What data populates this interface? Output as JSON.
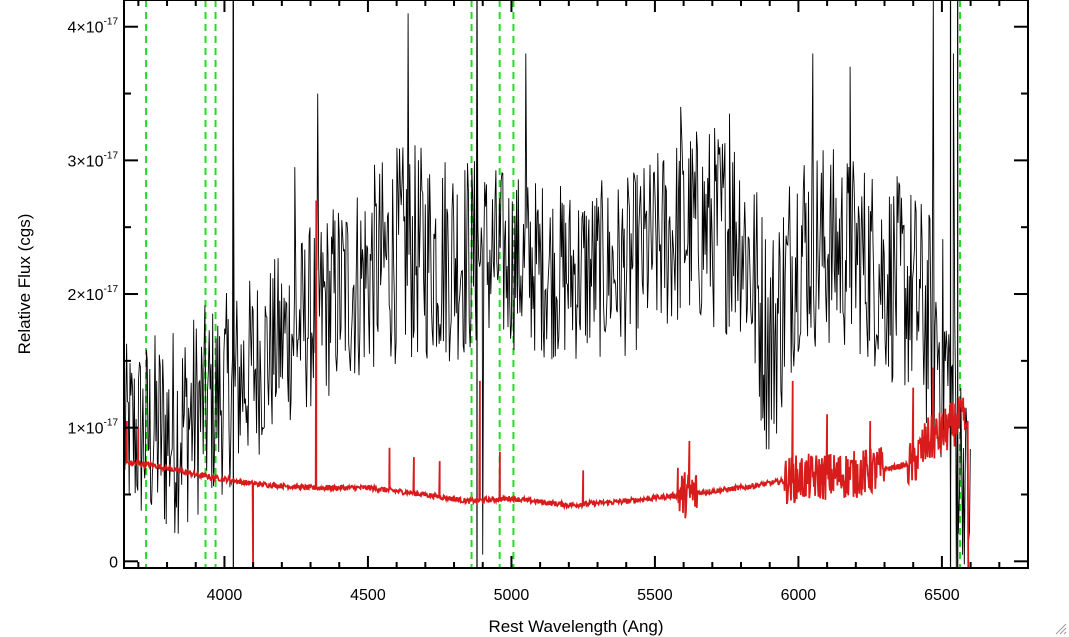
{
  "chart_data": {
    "type": "line",
    "title": "",
    "xlabel": "Rest Wavelength (Ang)",
    "ylabel": "Relative Flux (cgs)",
    "xlim": [
      3650,
      6800
    ],
    "ylim": [
      -5e-19,
      4.2e-17
    ],
    "x_ticks": [
      {
        "value": 4000,
        "label": "4000"
      },
      {
        "value": 4500,
        "label": "4500"
      },
      {
        "value": 5000,
        "label": "5000"
      },
      {
        "value": 5500,
        "label": "5500"
      },
      {
        "value": 6000,
        "label": "6000"
      },
      {
        "value": 6500,
        "label": "6500"
      }
    ],
    "y_ticks": [
      {
        "value": 0,
        "mantissa": "0",
        "exponent": ""
      },
      {
        "value": 1e-17,
        "mantissa": "1×10",
        "exponent": "-17"
      },
      {
        "value": 2e-17,
        "mantissa": "2×10",
        "exponent": "-17"
      },
      {
        "value": 3e-17,
        "mantissa": "3×10",
        "exponent": "-17"
      },
      {
        "value": 4e-17,
        "mantissa": "4×10",
        "exponent": "-17"
      }
    ],
    "series": [
      {
        "color": "#000000",
        "style": "noisy-line",
        "envelope": {
          "x": [
            3650,
            3800,
            4000,
            4200,
            4400,
            4600,
            4800,
            5000,
            5200,
            5400,
            5600,
            5800,
            5900,
            6000,
            6200,
            6400,
            6500,
            6550,
            6600
          ],
          "mean": [
            0.95,
            0.95,
            1.25,
            1.65,
            2.0,
            2.3,
            2.3,
            2.25,
            2.15,
            2.2,
            2.5,
            2.5,
            1.6,
            2.4,
            2.3,
            2.0,
            1.6,
            1.0,
            0.4
          ],
          "amplitude": [
            0.45,
            0.55,
            0.5,
            0.45,
            0.5,
            0.55,
            0.55,
            0.45,
            0.45,
            0.45,
            0.5,
            0.55,
            0.6,
            0.55,
            0.5,
            0.55,
            0.6,
            0.55,
            0.4
          ]
        },
        "spikes": [
          [
            4030,
            4.2
          ],
          [
            4245,
            2.95
          ],
          [
            4325,
            3.5
          ],
          [
            4640,
            4.1
          ],
          [
            4880,
            4.25
          ],
          [
            4900,
            0.05
          ],
          [
            5050,
            3.8
          ],
          [
            5590,
            3.4
          ],
          [
            5760,
            3.35
          ],
          [
            6050,
            3.8
          ],
          [
            6180,
            3.7
          ],
          [
            6470,
            4.25
          ],
          [
            6540,
            3.8
          ],
          [
            6550,
            -0.05
          ]
        ]
      },
      {
        "color": "#d81c1c",
        "style": "model-line",
        "baseline": {
          "x": [
            3650,
            3750,
            3900,
            4100,
            4300,
            4500,
            4700,
            4850,
            5000,
            5200,
            5400,
            5600,
            5800,
            6000,
            6200,
            6400,
            6450,
            6500,
            6550,
            6580,
            6600
          ],
          "y": [
            0.74,
            0.72,
            0.65,
            0.58,
            0.55,
            0.55,
            0.5,
            0.45,
            0.47,
            0.42,
            0.45,
            0.5,
            0.55,
            0.62,
            0.65,
            0.73,
            0.9,
            0.95,
            1.05,
            1.05,
            -0.1
          ]
        },
        "spikes": [
          [
            3660,
            1.05
          ],
          [
            3700,
            1.0
          ],
          [
            4100,
            -0.1
          ],
          [
            4320,
            2.7
          ],
          [
            4575,
            0.85
          ],
          [
            4660,
            0.78
          ],
          [
            4750,
            0.75
          ],
          [
            4890,
            1.35
          ],
          [
            4960,
            0.82
          ],
          [
            5250,
            0.68
          ],
          [
            5580,
            0.7
          ],
          [
            5620,
            0.9
          ],
          [
            5980,
            1.35
          ],
          [
            6100,
            1.1
          ],
          [
            6250,
            1.05
          ],
          [
            6400,
            1.3
          ],
          [
            6470,
            1.45
          ]
        ]
      }
    ],
    "vertical_lines": {
      "green_dashed": [
        3727,
        3934,
        3969,
        4861,
        4959,
        5007,
        6563
      ],
      "black_solid": [
        4031,
        4880,
        6530,
        6555
      ]
    }
  }
}
